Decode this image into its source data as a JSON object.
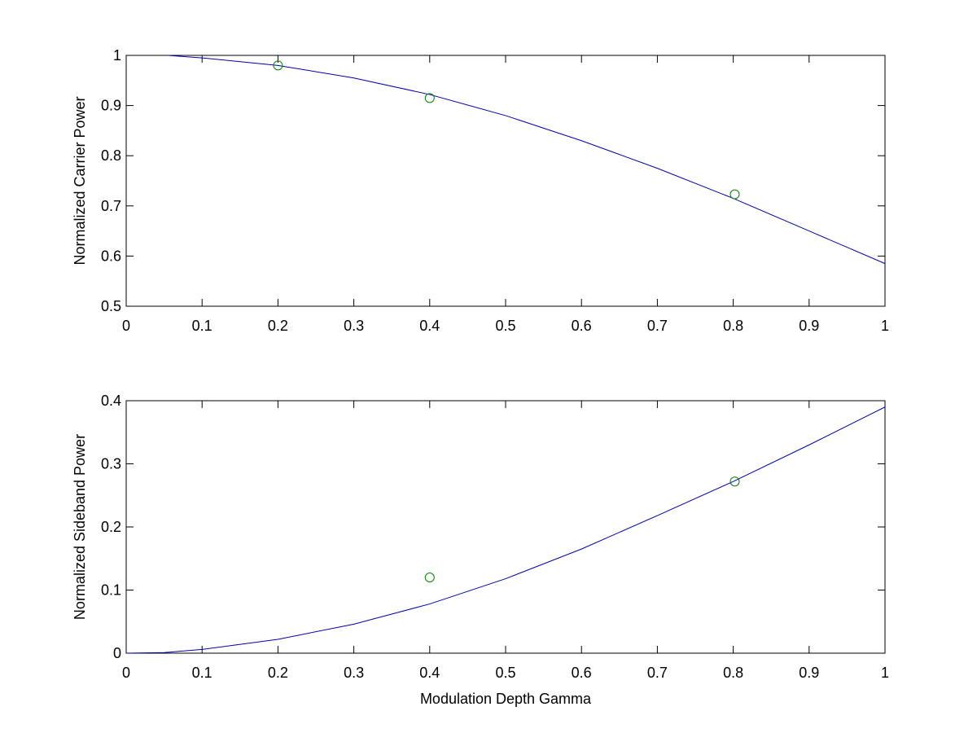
{
  "chart_data": [
    {
      "type": "line",
      "ylabel": "Normalized Carrier Power",
      "xlim": [
        0,
        1
      ],
      "ylim": [
        0.5,
        1
      ],
      "xticks": [
        0,
        0.1,
        0.2,
        0.3,
        0.4,
        0.5,
        0.6,
        0.7,
        0.8,
        0.9,
        1
      ],
      "yticks": [
        0.5,
        0.6,
        0.7,
        0.8,
        0.9,
        1
      ],
      "series": [
        {
          "color": "#0000aa",
          "style": "line",
          "x": [
            0.055,
            0.1,
            0.2,
            0.3,
            0.4,
            0.5,
            0.6,
            0.7,
            0.8,
            0.9,
            1
          ],
          "values": [
            1.0,
            0.995,
            0.98,
            0.955,
            0.922,
            0.88,
            0.83,
            0.775,
            0.715,
            0.65,
            0.585
          ]
        },
        {
          "color": "#008000",
          "style": "circle",
          "x": [
            0.2,
            0.4,
            0.802
          ],
          "values": [
            0.98,
            0.915,
            0.723
          ]
        }
      ]
    },
    {
      "type": "line",
      "ylabel": "Normalized Sideband Power",
      "xlabel": "Modulation Depth Gamma",
      "xlim": [
        0,
        1
      ],
      "ylim": [
        0,
        0.4
      ],
      "xticks": [
        0,
        0.1,
        0.2,
        0.3,
        0.4,
        0.5,
        0.6,
        0.7,
        0.8,
        0.9,
        1
      ],
      "yticks": [
        0,
        0.1,
        0.2,
        0.3,
        0.4
      ],
      "series": [
        {
          "color": "#0000aa",
          "style": "line",
          "x": [
            0,
            0.05,
            0.1,
            0.2,
            0.3,
            0.4,
            0.5,
            0.6,
            0.7,
            0.8,
            0.9,
            1
          ],
          "values": [
            0,
            0.001,
            0.006,
            0.022,
            0.046,
            0.078,
            0.118,
            0.165,
            0.218,
            0.272,
            0.33,
            0.39
          ]
        },
        {
          "color": "#008000",
          "style": "circle",
          "x": [
            0.4,
            0.802
          ],
          "values": [
            0.12,
            0.272
          ]
        }
      ]
    }
  ]
}
